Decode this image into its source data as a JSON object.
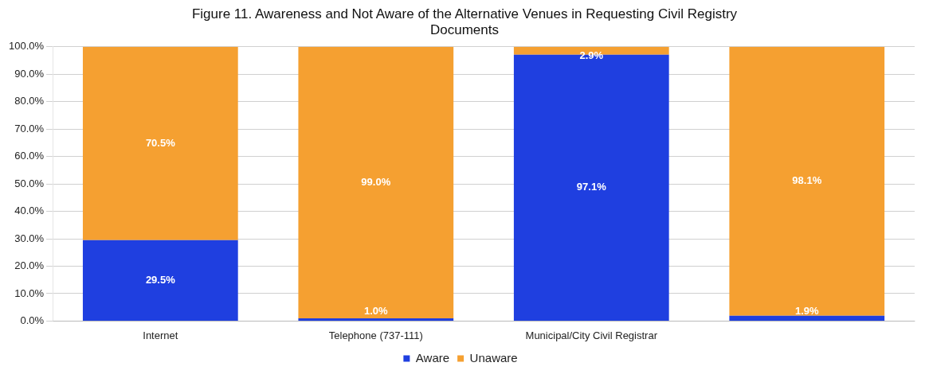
{
  "chart_data": {
    "type": "bar",
    "title": "Figure 11. Awareness and Not Aware of the Alternative Venues in Requesting Civil Registry Documents",
    "categories": [
      "Internet",
      "Telephone (737-111)",
      "Municipal/City Civil Registrar",
      null
    ],
    "series": [
      {
        "name": "Aware",
        "color": "#1f3fe0",
        "values": [
          29.5,
          1.0,
          97.1,
          1.9
        ],
        "value_labels": [
          "29.5%",
          "1.0%",
          "97.1%",
          "1.9%"
        ]
      },
      {
        "name": "Unaware",
        "color": "#f5a031",
        "values": [
          70.5,
          99.0,
          2.9,
          98.1
        ],
        "value_labels": [
          "70.5%",
          "99.0%",
          "2.9%",
          "98.1%"
        ]
      }
    ],
    "stacked": true,
    "ylim": [
      0,
      100
    ],
    "yticks": [
      {
        "value": 0,
        "label": "0.0%"
      },
      {
        "value": 10,
        "label": "10.0%"
      },
      {
        "value": 20,
        "label": "20.0%"
      },
      {
        "value": 30,
        "label": "30.0%"
      },
      {
        "value": 40,
        "label": "40.0%"
      },
      {
        "value": 50,
        "label": "50.0%"
      },
      {
        "value": 60,
        "label": "60.0%"
      },
      {
        "value": 70,
        "label": "70.0%"
      },
      {
        "value": 80,
        "label": "80.0%"
      },
      {
        "value": 90,
        "label": "90.0%"
      },
      {
        "value": 100,
        "label": "100.0%"
      }
    ],
    "grid": "y",
    "legend": "bottom"
  }
}
